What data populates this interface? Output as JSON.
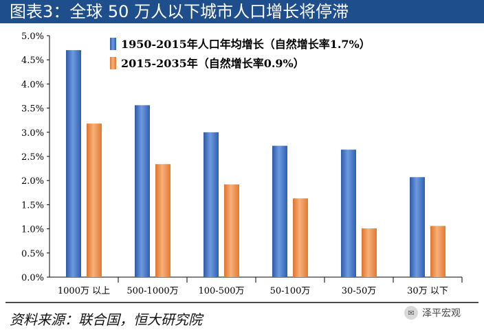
{
  "header": {
    "title": "图表3：全球 50 万人以下城市人口增长将停滞"
  },
  "footer": {
    "source": "资料来源：联合国，恒大研究院",
    "watermark": "泽平宏观",
    "watermark_icon": "wechat-icon"
  },
  "colors": {
    "series_a": "#3f6fc1",
    "series_b": "#ef8a3c",
    "title_bg": "#1f4e8c"
  },
  "chart_data": {
    "type": "bar",
    "title": "全球 50 万人以下城市人口增长将停滞",
    "categories": [
      "1000万 以上",
      "500-1000万",
      "100-500万",
      "50-100万",
      "30-50万",
      "30万 以下"
    ],
    "series": [
      {
        "name": "1950-2015年人口年均增长（自然增长率1.7%）",
        "values": [
          4.7,
          3.56,
          3.0,
          2.72,
          2.64,
          2.07
        ]
      },
      {
        "name": "2015-2035年（自然增长率0.9%）",
        "values": [
          3.18,
          2.34,
          1.92,
          1.63,
          1.01,
          1.06
        ]
      }
    ],
    "y_ticks": [
      "0.0%",
      "0.5%",
      "1.0%",
      "1.5%",
      "2.0%",
      "2.5%",
      "3.0%",
      "3.5%",
      "4.0%",
      "4.5%",
      "5.0%"
    ],
    "ylim": [
      0,
      5
    ],
    "legend_position": "top-center",
    "xlabel": "",
    "ylabel": ""
  }
}
